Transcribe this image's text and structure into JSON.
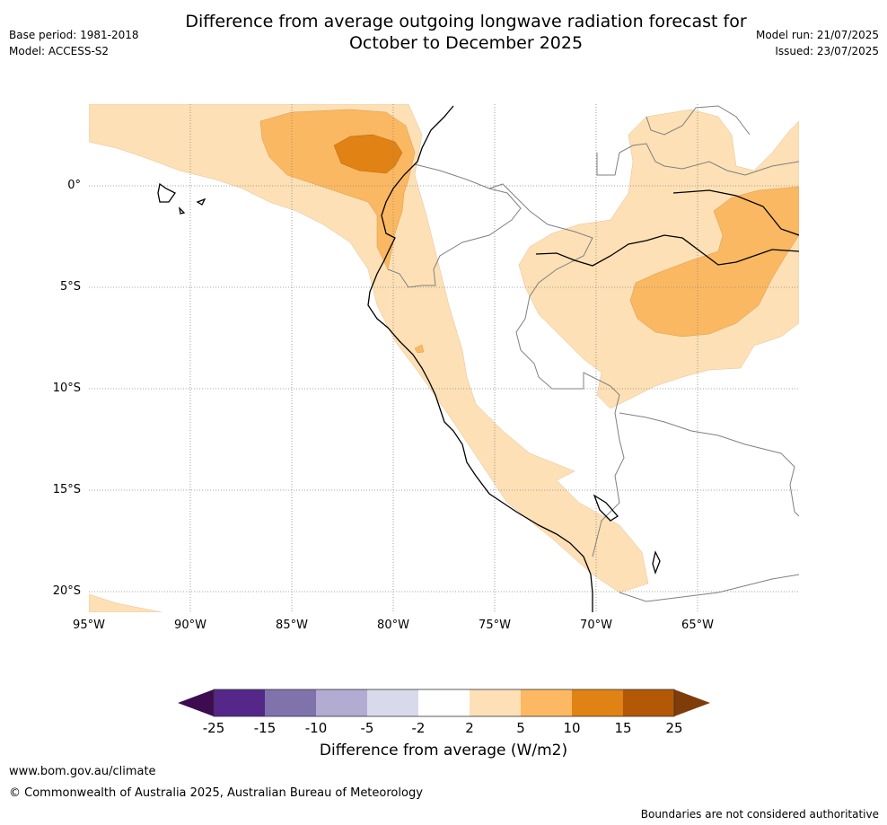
{
  "title": {
    "line1": "Difference from average outgoing longwave radiation forecast for",
    "line2": "October to December 2025"
  },
  "meta_left": {
    "base_period": "Base period: 1981-2018",
    "model": "Model: ACCESS-S2"
  },
  "meta_right": {
    "model_run": "Model run: 21/07/2025",
    "issued": "Issued: 23/07/2025"
  },
  "map": {
    "lat_labels": [
      "0°",
      "5°S",
      "10°S",
      "15°S",
      "20°S"
    ],
    "lon_labels": [
      "95°W",
      "90°W",
      "85°W",
      "80°W",
      "75°W",
      "70°W",
      "65°W"
    ],
    "gridlines": true,
    "anomaly_colors": {
      "2_to_5": "#fde0b5",
      "5_to_10": "#fbb862",
      "10_to_15": "#e08214"
    }
  },
  "colorbar": {
    "ticks": [
      "-25",
      "-15",
      "-10",
      "-5",
      "-2",
      "2",
      "5",
      "10",
      "15",
      "25"
    ],
    "colors": [
      "#3d0b50",
      "#542788",
      "#8073ac",
      "#b2abd2",
      "#d8daeb",
      "#ffffff",
      "#fee0b6",
      "#fdb863",
      "#e08214",
      "#b35806",
      "#7f3b08"
    ],
    "label": "Difference from average (W/m2)"
  },
  "footer": {
    "url": "www.bom.gov.au/climate",
    "copyright": "© Commonwealth of Australia 2025, Australian Bureau of Meteorology",
    "disclaimer": "Boundaries are not considered authoritative"
  }
}
